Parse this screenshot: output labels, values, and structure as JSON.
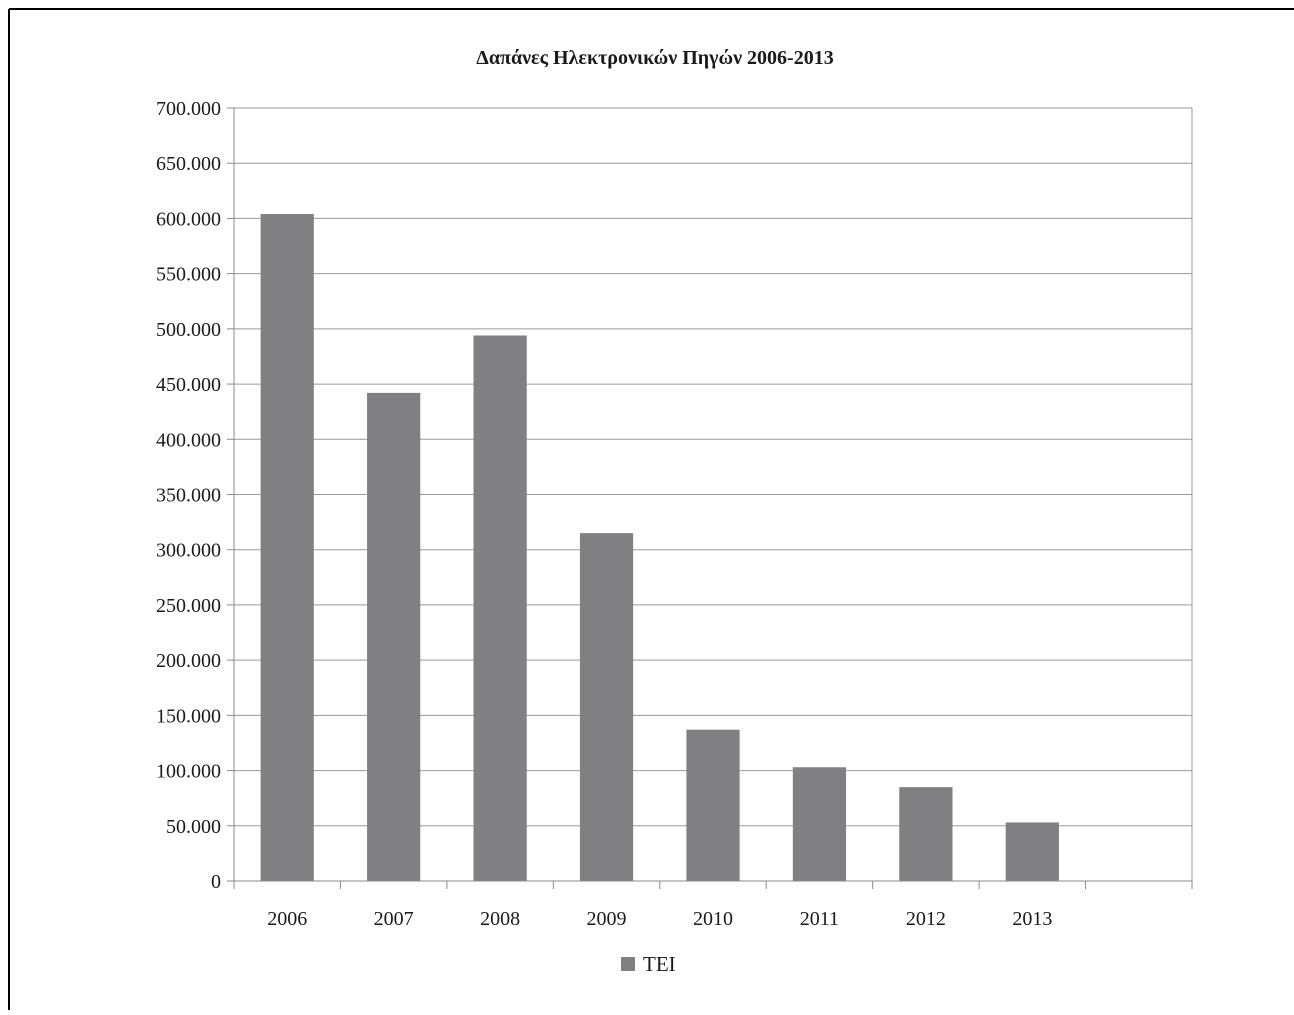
{
  "chart_data": {
    "type": "bar",
    "title": "Δαπάνες Ηλεκτρονικών Πηγών 2006-2013",
    "xlabel": "",
    "ylabel": "",
    "categories": [
      "2006",
      "2007",
      "2008",
      "2009",
      "2010",
      "2011",
      "2012",
      "2013",
      ""
    ],
    "series": [
      {
        "name": "ΤΕΙ",
        "values": [
          604000,
          442000,
          494000,
          315000,
          137000,
          103000,
          85000,
          53000,
          null
        ]
      }
    ],
    "ylim": [
      0,
      700000
    ],
    "y_ticks": [
      "0",
      "50.000",
      "100.000",
      "150.000",
      "200.000",
      "250.000",
      "300.000",
      "350.000",
      "400.000",
      "450.000",
      "500.000",
      "550.000",
      "600.000",
      "650.000",
      "700.000"
    ],
    "grid": "horizontal",
    "legend_position": "bottom",
    "colors": {
      "bar": "#808083",
      "grid": "#9a9a9a",
      "axis": "#8a8a8a",
      "frame": "#000000",
      "text": "#1a1a1a"
    }
  }
}
